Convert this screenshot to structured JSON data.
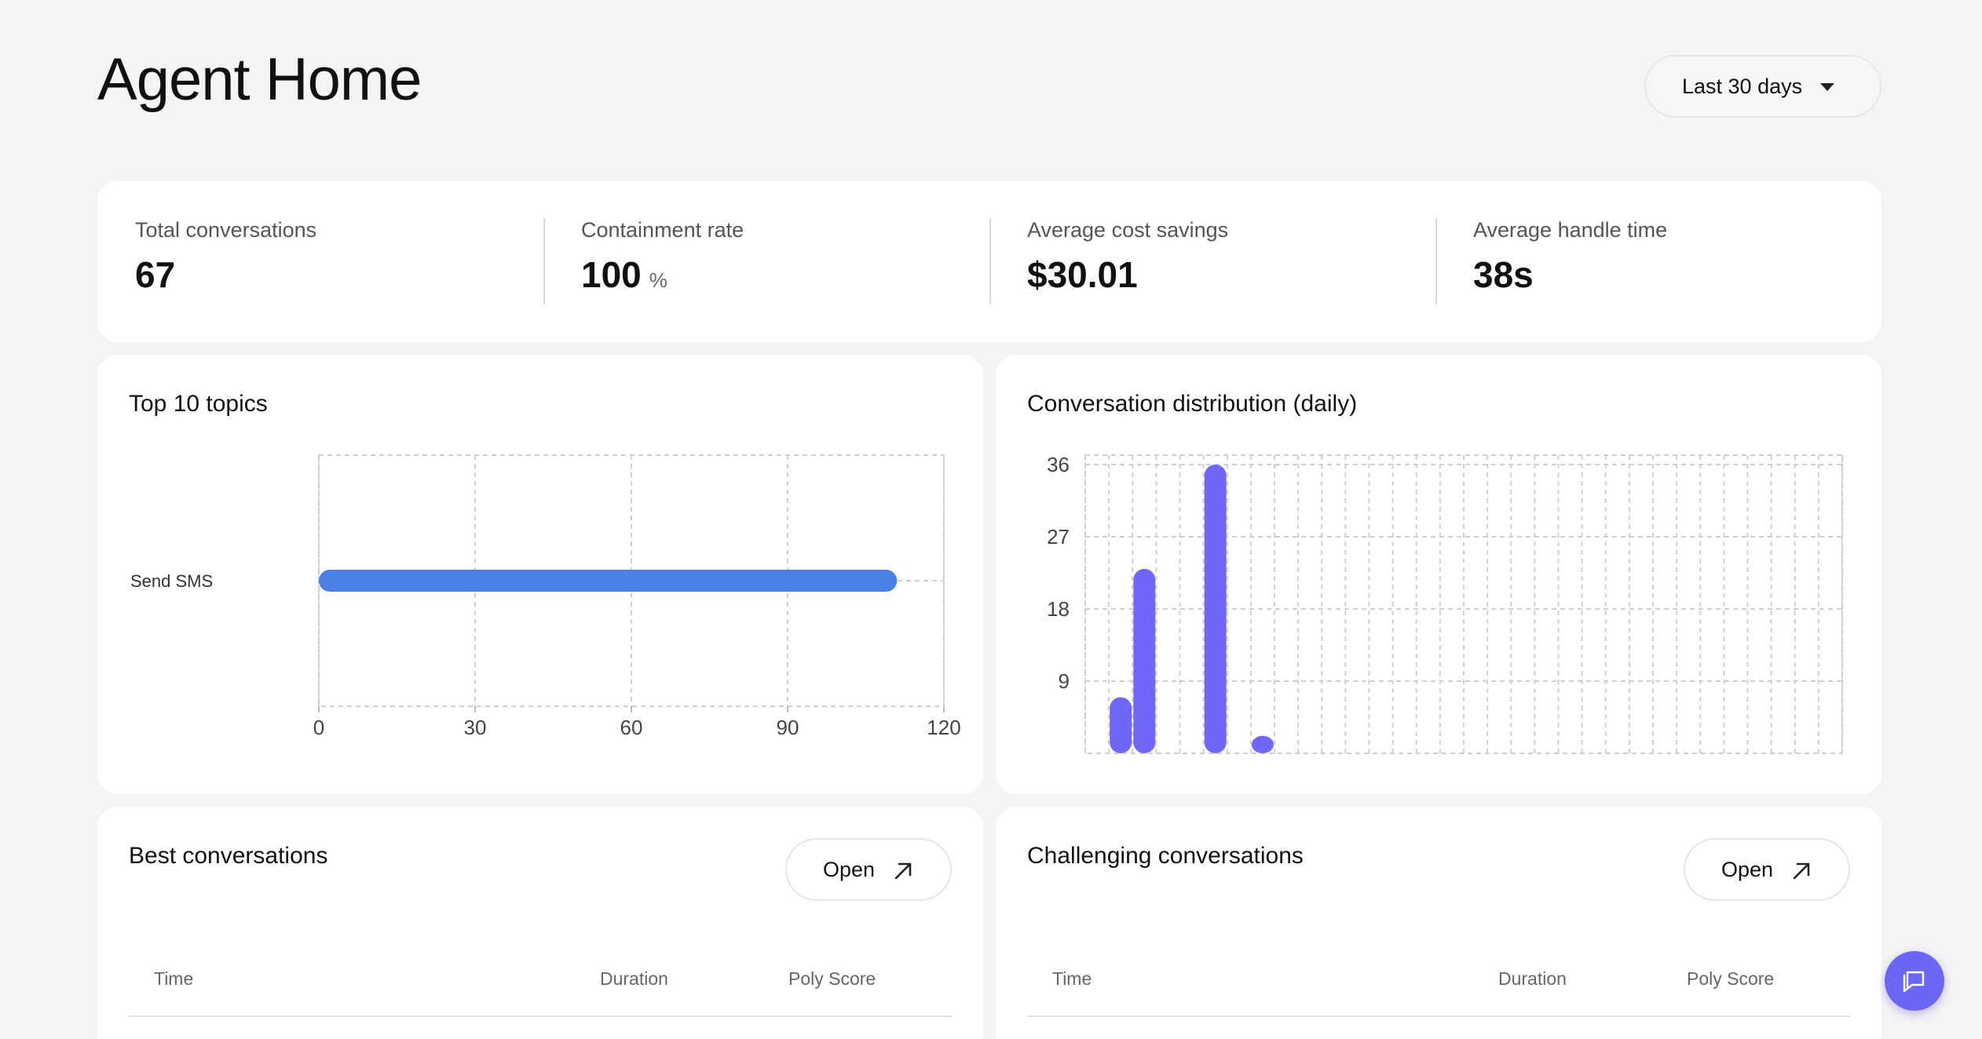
{
  "page": {
    "title": "Agent Home"
  },
  "date_filter": {
    "selected": "Last 30 days"
  },
  "stats": [
    {
      "label": "Total conversations",
      "value": "67",
      "unit": ""
    },
    {
      "label": "Containment rate",
      "value": "100",
      "unit": "%"
    },
    {
      "label": "Average cost savings",
      "value": "$30.01",
      "unit": ""
    },
    {
      "label": "Average handle time",
      "value": "38s",
      "unit": ""
    }
  ],
  "colors": {
    "accent": "#6c66f5",
    "topic_bar": "#4a7fe5",
    "dist_bar": "#6f67f7"
  },
  "icons": {
    "dropdown": "caret-down-icon",
    "open": "arrow-up-right-icon",
    "chat": "chat-icon"
  },
  "topics_card": {
    "title": "Top 10 topics"
  },
  "dist_card": {
    "title": "Conversation distribution (daily)"
  },
  "best_card": {
    "title": "Best conversations",
    "open_label": "Open",
    "columns": [
      "Time",
      "Duration",
      "Poly Score"
    ]
  },
  "challenging_card": {
    "title": "Challenging conversations",
    "open_label": "Open",
    "columns": [
      "Time",
      "Duration",
      "Poly Score"
    ]
  },
  "chart_data": [
    {
      "type": "bar",
      "orientation": "horizontal",
      "title": "Top 10 topics",
      "categories": [
        "Send SMS"
      ],
      "values": [
        111
      ],
      "xlim": [
        0,
        120
      ],
      "xticks": [
        0,
        30,
        60,
        90,
        120
      ],
      "grid": true
    },
    {
      "type": "bar",
      "title": "Conversation distribution (daily)",
      "x_count": 30,
      "values": [
        0,
        7,
        23,
        0,
        0,
        36,
        0,
        1,
        0,
        0,
        0,
        0,
        0,
        0,
        0,
        0,
        0,
        0,
        0,
        0,
        0,
        0,
        0,
        0,
        0,
        0,
        0,
        0,
        0,
        0
      ],
      "ylim": [
        0,
        36
      ],
      "yticks": [
        9,
        18,
        27,
        36
      ],
      "grid": true
    }
  ]
}
